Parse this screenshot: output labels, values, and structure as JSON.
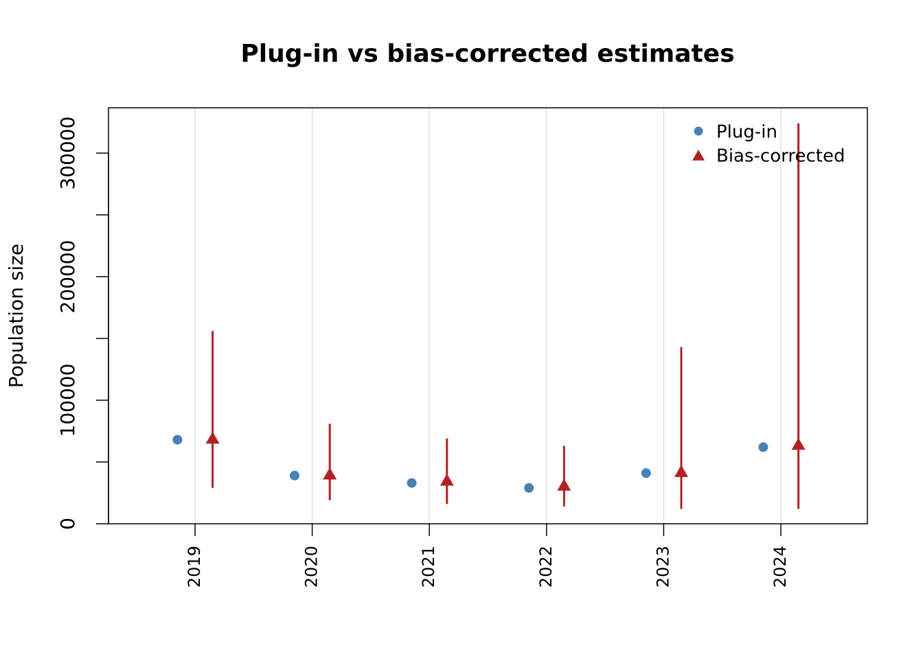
{
  "chart_data": {
    "type": "dot_errorbar",
    "title": "Plug-in vs bias-corrected estimates",
    "y_label": "Population size",
    "categories": [
      "2019",
      "2020",
      "2021",
      "2022",
      "2023",
      "2024"
    ],
    "series": [
      {
        "name": "Plug-in",
        "color": "#4682b4",
        "marker": "circle",
        "values": [
          68000,
          39000,
          33000,
          29000,
          41000,
          62000
        ]
      },
      {
        "name": "Bias-corrected",
        "color": "#b22222",
        "marker": "triangle",
        "values": [
          69000,
          40000,
          35000,
          31000,
          42000,
          64000
        ],
        "lower": [
          29000,
          19000,
          16000,
          14000,
          12000,
          12000
        ],
        "upper": [
          156000,
          81000,
          69000,
          63000,
          143000,
          324000
        ]
      }
    ],
    "ylim": [
      0,
      336667
    ],
    "yticks": [
      0,
      100000,
      200000,
      300000
    ],
    "yminor_ticks": [
      50000,
      150000,
      250000
    ],
    "grid": true,
    "legend": "top-right"
  }
}
